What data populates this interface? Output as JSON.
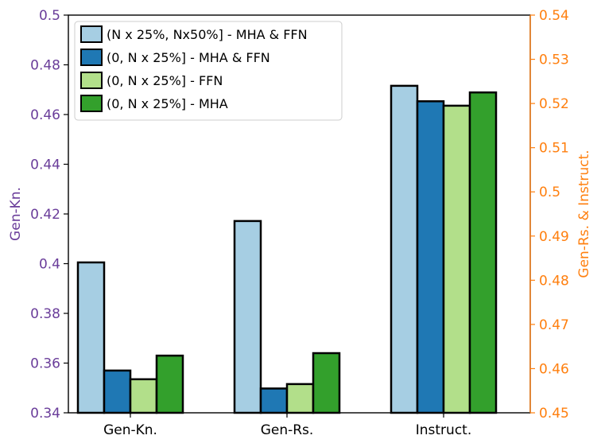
{
  "chart_data": {
    "type": "bar",
    "categories": [
      "Gen-Kn.",
      "Gen-Rs.",
      "Instruct."
    ],
    "series": [
      {
        "name": "(N x 25%, Nx50%] - MHA & FFN",
        "color": "#a6cee3",
        "values": [
          0.4005,
          0.4934,
          0.524
        ]
      },
      {
        "name": "(0, N x 25%] - MHA & FFN",
        "color": "#1f78b4",
        "values": [
          0.357,
          0.4555,
          0.5205
        ]
      },
      {
        "name": "(0, N x 25%] - FFN",
        "color": "#b2df8a",
        "values": [
          0.3535,
          0.4565,
          0.5195
        ]
      },
      {
        "name": "(0, N x 25%] - MHA",
        "color": "#33a02c",
        "values": [
          0.363,
          0.4635,
          0.5225
        ]
      }
    ],
    "series_axis": [
      "left",
      "right",
      "right"
    ],
    "ylabel_left": "Gen-Kn.",
    "ylabel_right": "Gen-Rs. & Instruct.",
    "ylim_left": [
      0.34,
      0.5
    ],
    "ylim_right": [
      0.45,
      0.54
    ],
    "yticks_left": [
      "0.34",
      "0.36",
      "0.38",
      "0.4",
      "0.42",
      "0.44",
      "0.46",
      "0.48",
      "0.5"
    ],
    "yticks_right": [
      "0.45",
      "0.46",
      "0.47",
      "0.48",
      "0.49",
      "0.5",
      "0.51",
      "0.52",
      "0.53",
      "0.54"
    ],
    "left_axis_color": "#6a3d9a",
    "right_axis_color": "#ff7f0e",
    "legend_position": "top-left",
    "grid": false
  }
}
